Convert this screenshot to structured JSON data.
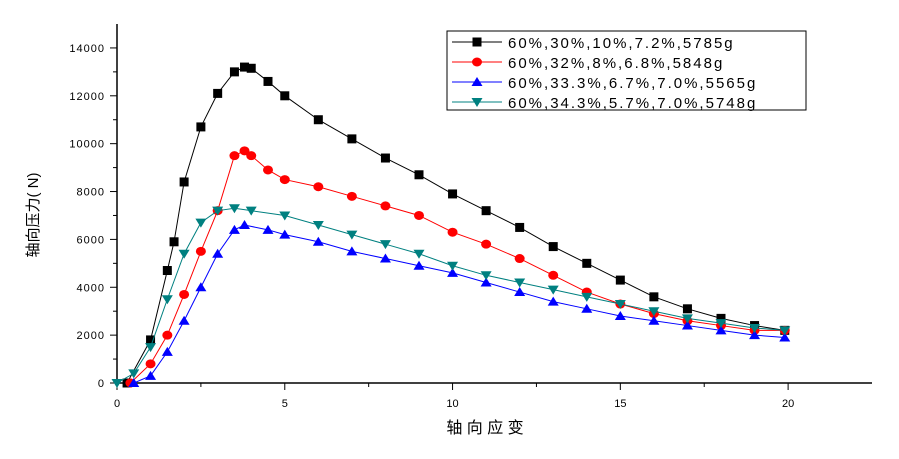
{
  "chart_data": {
    "type": "line",
    "title": "",
    "xlabel": "轴 向 应 变",
    "ylabel": "轴向压力( N)",
    "xlim": [
      0,
      22.5
    ],
    "ylim": [
      0,
      15000
    ],
    "xticks": [
      0,
      5,
      10,
      15,
      20
    ],
    "yticks": [
      0,
      2000,
      4000,
      6000,
      8000,
      10000,
      12000,
      14000
    ],
    "ytick_labels": [
      "0",
      "2000",
      "4000",
      "6000",
      "8000",
      "10000",
      "12000",
      "14000"
    ],
    "grid": false,
    "legend_position": "top-right",
    "series": [
      {
        "name": "60%,30%,10%,7.2%,5785g",
        "color": "#000000",
        "marker": "square",
        "x": [
          0.3,
          1,
          1.5,
          1.7,
          2,
          2.5,
          3,
          3.5,
          3.8,
          4,
          4.5,
          5,
          6,
          7,
          8,
          9,
          10,
          11,
          12,
          13,
          14,
          15,
          16,
          17,
          18,
          19,
          19.9
        ],
        "y": [
          0,
          1800,
          4700,
          5900,
          8400,
          10700,
          12100,
          13000,
          13200,
          13150,
          12600,
          12000,
          11000,
          10200,
          9400,
          8700,
          7900,
          7200,
          6500,
          5700,
          5000,
          4300,
          3600,
          3100,
          2700,
          2400,
          2200
        ]
      },
      {
        "name": "60%,32%,8%,6.8%,5848g",
        "color": "#ff0000",
        "marker": "circle",
        "x": [
          0.4,
          1,
          1.5,
          2,
          2.5,
          3,
          3.5,
          3.8,
          4,
          4.5,
          5,
          6,
          7,
          8,
          9,
          10,
          11,
          12,
          13,
          14,
          15,
          16,
          17,
          18,
          19,
          19.9
        ],
        "y": [
          0,
          800,
          2000,
          3700,
          5500,
          7200,
          9500,
          9700,
          9500,
          8900,
          8500,
          8200,
          7800,
          7400,
          7000,
          6300,
          5800,
          5200,
          4500,
          3800,
          3300,
          2900,
          2600,
          2400,
          2200,
          2200
        ]
      },
      {
        "name": "60%,33.3%,6.7%,7.0%,5565g",
        "color": "#0000ff",
        "marker": "triangle-up",
        "x": [
          0.5,
          1,
          1.5,
          2,
          2.5,
          3,
          3.5,
          3.8,
          4.5,
          5,
          6,
          7,
          8,
          9,
          10,
          11,
          12,
          13,
          14,
          15,
          16,
          17,
          18,
          19,
          19.9
        ],
        "y": [
          0,
          300,
          1300,
          2600,
          4000,
          5400,
          6400,
          6600,
          6400,
          6200,
          5900,
          5500,
          5200,
          4900,
          4600,
          4200,
          3800,
          3400,
          3100,
          2800,
          2600,
          2400,
          2200,
          2000,
          1900
        ]
      },
      {
        "name": "60%,34.3%,5.7%,7.0%,5748g",
        "color": "#008080",
        "marker": "triangle-down",
        "x": [
          0,
          0.5,
          1,
          1.5,
          2,
          2.5,
          3,
          3.5,
          4,
          5,
          6,
          7,
          8,
          9,
          10,
          11,
          12,
          13,
          14,
          15,
          16,
          17,
          18,
          19,
          19.9
        ],
        "y": [
          0,
          400,
          1500,
          3500,
          5400,
          6700,
          7200,
          7300,
          7200,
          7000,
          6600,
          6200,
          5800,
          5400,
          4900,
          4500,
          4200,
          3900,
          3600,
          3300,
          3000,
          2700,
          2500,
          2300,
          2200
        ]
      }
    ]
  }
}
